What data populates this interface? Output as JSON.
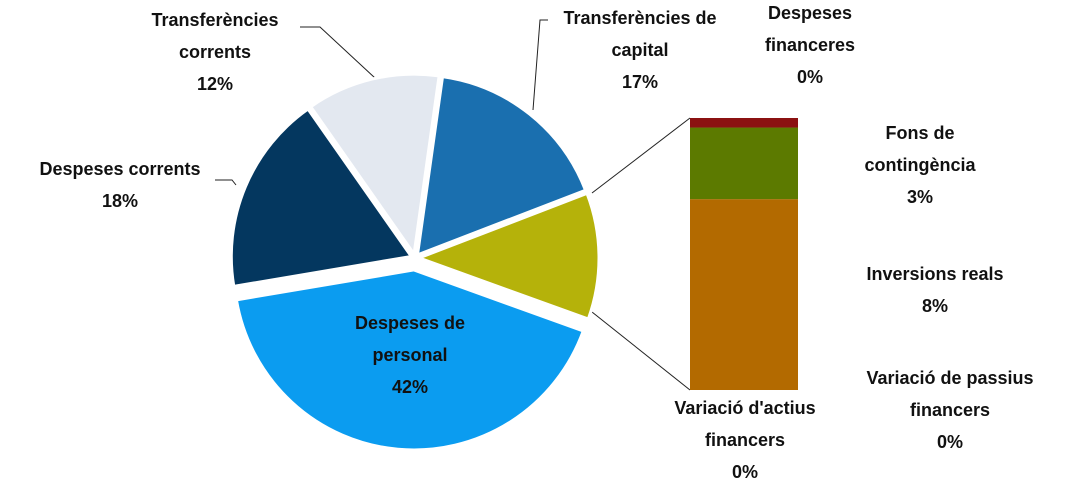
{
  "chart_data": {
    "type": "pie-of-bar",
    "pie": {
      "categories": [
        "Transferències de capital",
        "Despeses de personal",
        "Despeses corrents",
        "Transferències corrents"
      ],
      "values": [
        17,
        42,
        18,
        12
      ],
      "value_labels": [
        "17%",
        "42%",
        "18%",
        "12%"
      ],
      "colors": [
        "#1a6faf",
        "#0b9cf0",
        "#04375f",
        "#e3e8f0"
      ]
    },
    "other_color": "#b5b20a",
    "bar": {
      "categories": [
        "Variació d'actius financers",
        "Variació de passius financers",
        "Inversions reals",
        "Fons de contingència",
        "Despeses financeres"
      ],
      "values": [
        0,
        0,
        8,
        3,
        0.4
      ],
      "value_labels": [
        "0%",
        "0%",
        "8%",
        "3%",
        "0%"
      ],
      "colors": [
        "#7a4a9c",
        "#3d7a9c",
        "#b36a00",
        "#5c7a00",
        "#8b1111"
      ]
    }
  }
}
